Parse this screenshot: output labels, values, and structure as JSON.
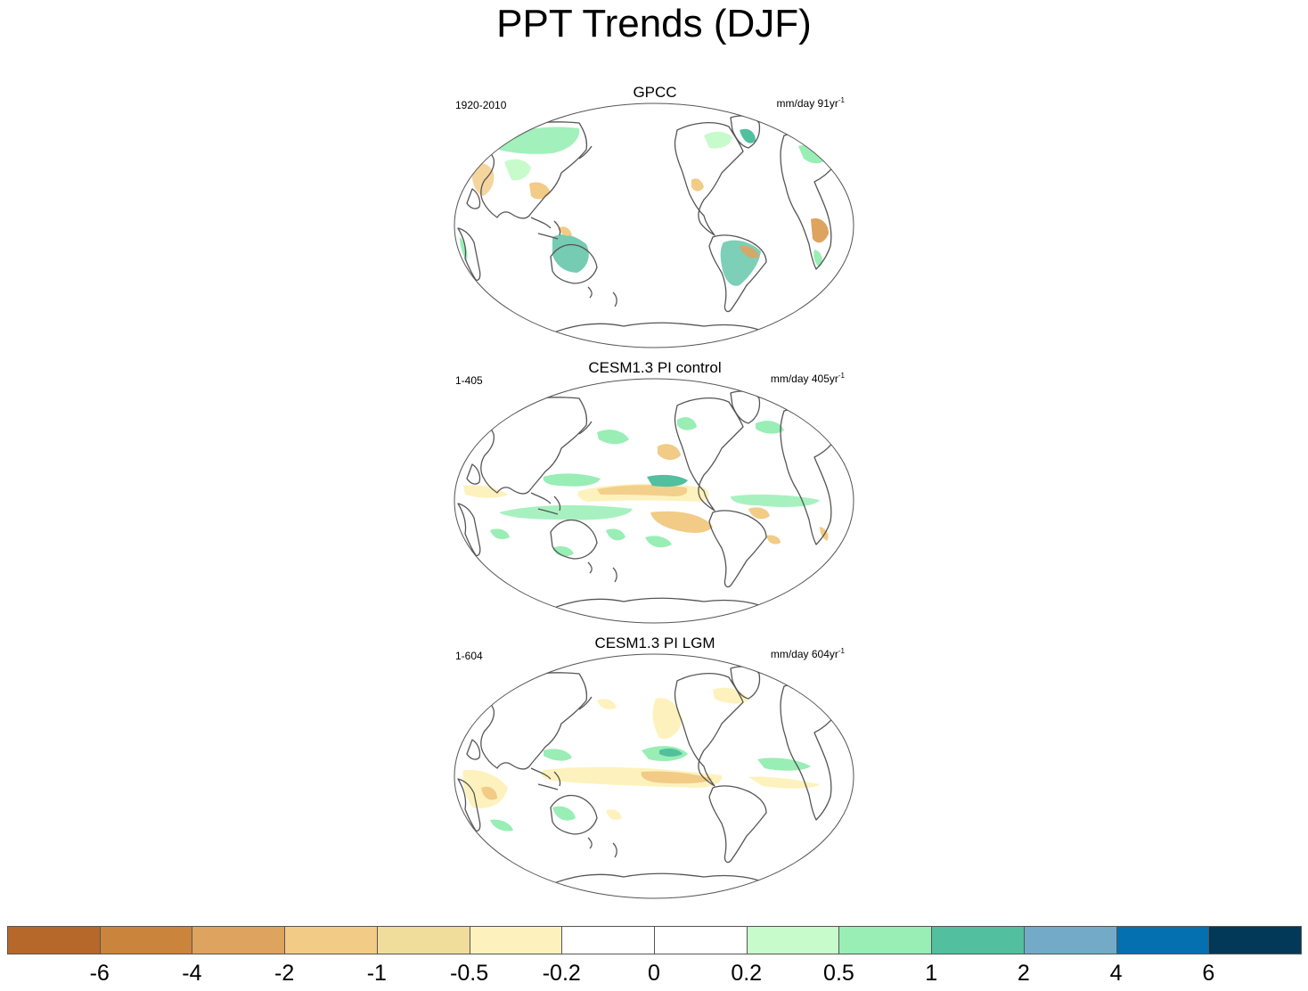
{
  "title": "PPT Trends (DJF)",
  "panels": [
    {
      "title": "GPCC",
      "period": "1920-2010",
      "units": "mm/day 91yr",
      "units_exp": "-1"
    },
    {
      "title": "CESM1.3 PI control",
      "period": "1-405",
      "units": "mm/day 405yr",
      "units_exp": "-1"
    },
    {
      "title": "CESM1.3 PI LGM",
      "period": "1-604",
      "units": "mm/day 604yr",
      "units_exp": "-1"
    }
  ],
  "colorbar": {
    "colors": [
      "#b5682a",
      "#cb843c",
      "#dda35f",
      "#f2cb86",
      "#f0dd9c",
      "#fdf2bd",
      "#ffffff",
      "#ffffff",
      "#c8fbcb",
      "#98eeb5",
      "#52bf9f",
      "#72aac8",
      "#0570b0",
      "#023858"
    ],
    "labels": [
      "-6",
      "-4",
      "-2",
      "-1",
      "-0.5",
      "-0.2",
      "0",
      "0.2",
      "0.5",
      "1",
      "2",
      "4",
      "6"
    ]
  },
  "colors": {
    "coast": "#555555"
  },
  "chart_data": {
    "type": "heatmap",
    "title": "PPT Trends (DJF)",
    "panels": [
      "GPCC",
      "CESM1.3 PI control",
      "CESM1.3 PI LGM"
    ],
    "levels": [
      -6,
      -4,
      -2,
      -1,
      -0.5,
      -0.2,
      0,
      0.2,
      0.5,
      1,
      2,
      4,
      6
    ]
  }
}
